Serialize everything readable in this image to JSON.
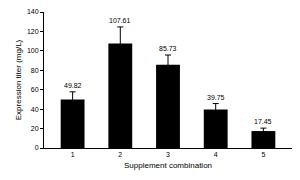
{
  "chart_data": {
    "type": "bar",
    "x_label": "Supplement combination",
    "y_label": "Expression titer (mg/L)",
    "categories": [
      "1",
      "2",
      "3",
      "4",
      "5"
    ],
    "values": [
      49.82,
      107.61,
      85.73,
      39.75,
      17.45
    ],
    "errors": [
      8,
      17,
      10,
      6,
      3
    ],
    "color": "#000000",
    "ylim": [
      0,
      140
    ],
    "yticks": [
      0,
      20,
      40,
      60,
      80,
      100,
      120,
      140
    ],
    "grid": false,
    "data_labels": true
  }
}
